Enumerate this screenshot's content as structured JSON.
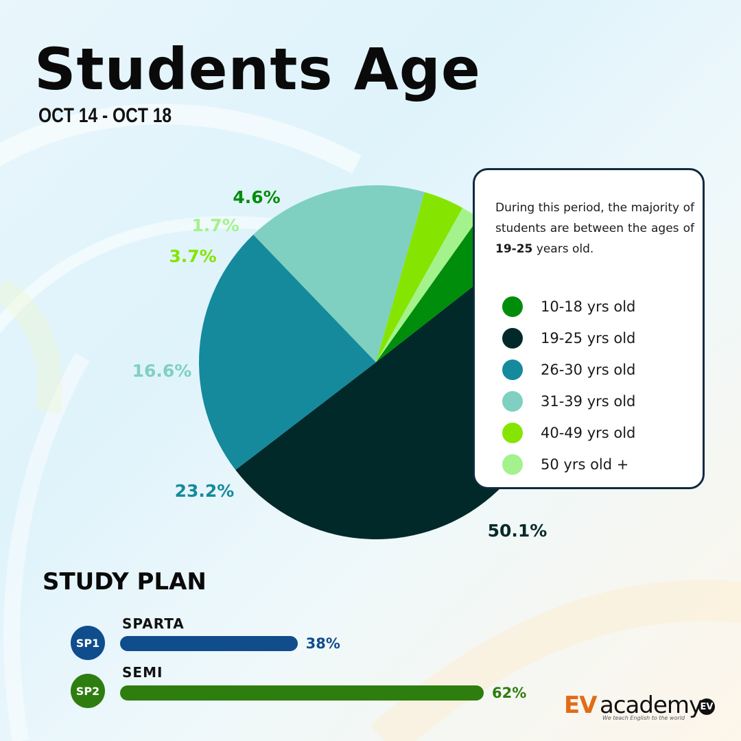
{
  "header": {
    "title": "Students Age",
    "subtitle": "OCT 14 - OCT 18"
  },
  "chart_data": {
    "type": "pie",
    "title": "Students Age",
    "start_angle_deg": -38,
    "slices": [
      {
        "label": "19-25 yrs old",
        "value": 50.1,
        "display": "50.1%",
        "color": "#02292a"
      },
      {
        "label": "26-30 yrs old",
        "value": 23.2,
        "display": "23.2%",
        "color": "#158a9c"
      },
      {
        "label": "31-39 yrs old",
        "value": 16.6,
        "display": "16.6%",
        "color": "#7fd0c0"
      },
      {
        "label": "40-49 yrs old",
        "value": 3.7,
        "display": "3.7%",
        "color": "#85e500"
      },
      {
        "label": "50 yrs old +",
        "value": 1.7,
        "display": "1.7%",
        "color": "#a3f28c"
      },
      {
        "label": "10-18 yrs old",
        "value": 4.6,
        "display": "4.6%",
        "color": "#008d0b"
      }
    ],
    "legend_placement": "right"
  },
  "info": {
    "text_before": "During this period, the majority of students are between the ages of ",
    "highlight": "19-25",
    "text_after": " years old."
  },
  "legend": [
    {
      "label": "10-18 yrs old",
      "color": "#008d0b"
    },
    {
      "label": "19-25 yrs old",
      "color": "#02292a"
    },
    {
      "label": "26-30 yrs old",
      "color": "#158a9c"
    },
    {
      "label": "31-39 yrs old",
      "color": "#7fd0c0"
    },
    {
      "label": "40-49 yrs old",
      "color": "#85e500"
    },
    {
      "label": "50 yrs old +",
      "color": "#a3f28c"
    }
  ],
  "study_plan": {
    "title": "STUDY PLAN",
    "plans": [
      {
        "badge": "SP1",
        "name": "SPARTA",
        "value": 38,
        "display": "38%",
        "color": "#0f4d8c"
      },
      {
        "badge": "SP2",
        "name": "SEMI",
        "value": 62,
        "display": "62%",
        "color": "#2e7d0f"
      }
    ]
  },
  "logo": {
    "ev": "EV",
    "academy": "academy",
    "tagline": "We teach English to the world",
    "mark": "EV"
  }
}
